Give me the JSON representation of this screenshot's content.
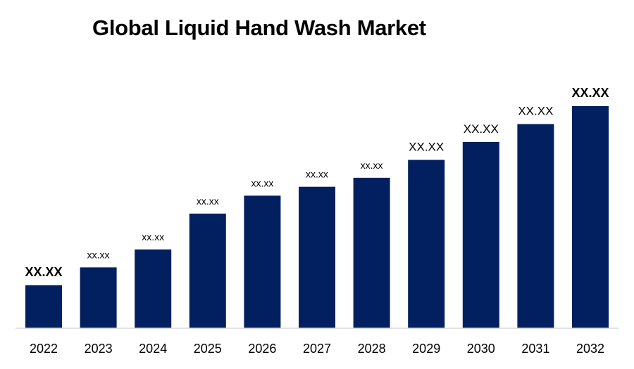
{
  "chart_data": {
    "type": "bar",
    "title": "Global Liquid Hand Wash Market",
    "xlabel": "",
    "ylabel": "",
    "categories": [
      "2022",
      "2023",
      "2024",
      "2025",
      "2026",
      "2027",
      "2028",
      "2029",
      "2030",
      "2031",
      "2032"
    ],
    "values": [
      24,
      34,
      44,
      64,
      74,
      79,
      84,
      94,
      104,
      114,
      124
    ],
    "data_labels": [
      "XX.XX",
      "xx.xx",
      "xx.xx",
      "xx.xx",
      "xx.xx",
      "xx.xx",
      "xx.xx",
      "XX.XX",
      "XX.XX",
      "XX.XX",
      "XX.XX"
    ],
    "ylim": [
      0,
      124
    ],
    "bar_color": "#02205f",
    "grid": false,
    "legend": "none"
  }
}
